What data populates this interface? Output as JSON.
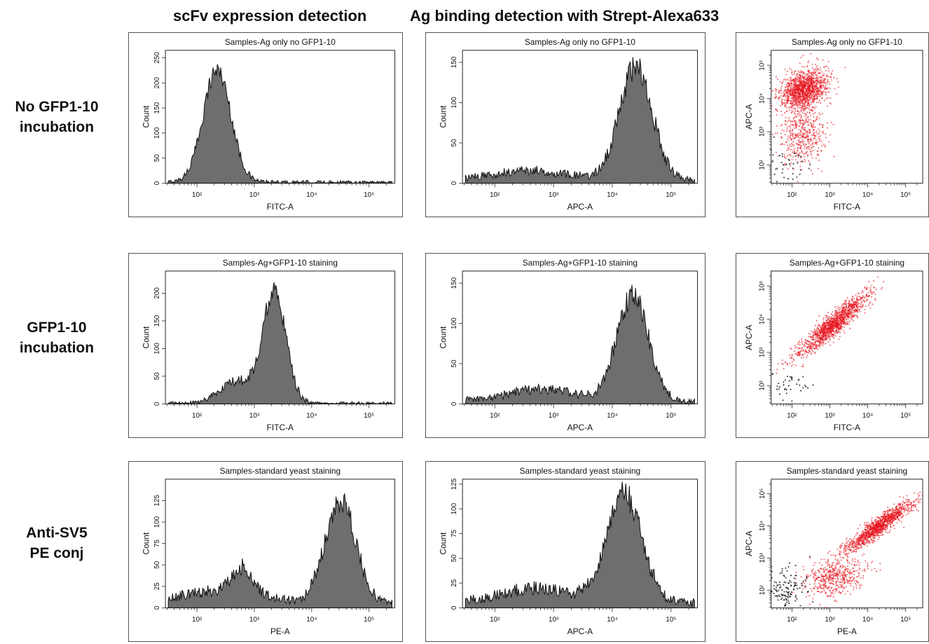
{
  "column_titles": [
    "scFv expression detection",
    "Ag binding detection with Strept-Alexa633"
  ],
  "row_labels": [
    [
      "No GFP1-10",
      "incubation"
    ],
    [
      "GFP1-10",
      "incubation"
    ],
    [
      "Anti-SV5",
      "PE conj"
    ]
  ],
  "colors": {
    "histogram_fill": "#6e6e6e",
    "histogram_line": "#111111",
    "dots_main": "#e8141e",
    "dots_dark": "#222222"
  },
  "chart_data": [
    {
      "type": "histogram",
      "row": 0,
      "col": 0,
      "title": "Samples-Ag only no GFP1-10",
      "xlabel": "FITC-A",
      "ylabel": "Count",
      "xscale": "log",
      "x_ticks": [
        "10²",
        "10³",
        "10⁴",
        "10⁵"
      ],
      "yticks": [
        0,
        50,
        100,
        150,
        200,
        250
      ],
      "ylim": [
        0,
        265
      ],
      "peaks": [
        {
          "log_center": 2.35,
          "log_width": 0.24,
          "height": 225
        }
      ],
      "baseline": 2,
      "peak_value": 235
    },
    {
      "type": "histogram",
      "row": 0,
      "col": 1,
      "title": "Samples-Ag only no GFP1-10",
      "xlabel": "APC-A",
      "ylabel": "Count",
      "xscale": "log",
      "x_ticks": [
        "10²",
        "10³",
        "10⁴",
        "10⁵"
      ],
      "yticks": [
        0,
        50,
        100,
        150
      ],
      "ylim": [
        0,
        165
      ],
      "peaks": [
        {
          "log_center": 4.4,
          "log_width": 0.28,
          "height": 140
        },
        {
          "log_center": 2.6,
          "log_width": 0.6,
          "height": 12
        }
      ],
      "baseline": 4,
      "peak_value": 160
    },
    {
      "type": "scatter",
      "row": 0,
      "col": 2,
      "title": "Samples-Ag only no GFP1-10",
      "xlabel": "FITC-A",
      "ylabel": "APC-A",
      "xscale": "log",
      "yscale": "log",
      "x_ticks": [
        "10²",
        "10³",
        "10⁴",
        "10⁵"
      ],
      "y_ticks": [
        "10²",
        "10³",
        "10⁴",
        "10⁵"
      ],
      "clusters": [
        {
          "x_log": 2.3,
          "y_log": 4.25,
          "sx": 0.3,
          "sy": 0.3,
          "n": 1300,
          "rho": 0.3
        },
        {
          "x_log": 2.3,
          "y_log": 2.9,
          "sx": 0.3,
          "sy": 0.45,
          "n": 450,
          "rho": 0.15
        }
      ],
      "dark_points": 40
    },
    {
      "type": "histogram",
      "row": 1,
      "col": 0,
      "title": "Samples-Ag+GFP1-10 staining",
      "xlabel": "FITC-A",
      "ylabel": "Count",
      "xscale": "log",
      "x_ticks": [
        "10²",
        "10³",
        "10⁴",
        "10⁵"
      ],
      "yticks": [
        0,
        50,
        100,
        150,
        200
      ],
      "ylim": [
        0,
        240
      ],
      "peaks": [
        {
          "log_center": 3.35,
          "log_width": 0.2,
          "height": 200
        },
        {
          "log_center": 2.7,
          "log_width": 0.3,
          "height": 40
        }
      ],
      "baseline": 1,
      "peak_value": 230
    },
    {
      "type": "histogram",
      "row": 1,
      "col": 1,
      "title": "Samples-Ag+GFP1-10 staining",
      "xlabel": "APC-A",
      "ylabel": "Count",
      "xscale": "log",
      "x_ticks": [
        "10²",
        "10³",
        "10⁴",
        "10⁵"
      ],
      "yticks": [
        0,
        50,
        100,
        150
      ],
      "ylim": [
        0,
        165
      ],
      "peaks": [
        {
          "log_center": 4.35,
          "log_width": 0.27,
          "height": 130
        },
        {
          "log_center": 2.8,
          "log_width": 0.6,
          "height": 15
        }
      ],
      "baseline": 3,
      "peak_value": 150
    },
    {
      "type": "scatter",
      "row": 1,
      "col": 2,
      "title": "Samples-Ag+GFP1-10 staining",
      "xlabel": "FITC-A",
      "ylabel": "APC-A",
      "xscale": "log",
      "yscale": "log",
      "x_ticks": [
        "10²",
        "10³",
        "10⁴",
        "10⁵"
      ],
      "y_ticks": [
        "10²",
        "10³",
        "10⁴",
        "10⁵"
      ],
      "clusters": [
        {
          "x_log": 3.1,
          "y_log": 3.85,
          "sx": 0.45,
          "sy": 0.45,
          "n": 1300,
          "rho": 0.92
        }
      ],
      "dark_points": 40
    },
    {
      "type": "histogram",
      "row": 2,
      "col": 0,
      "title": "Samples-standard yeast staining",
      "xlabel": "PE-A",
      "ylabel": "Count",
      "xscale": "log",
      "x_ticks": [
        "10²",
        "10³",
        "10⁴",
        "10⁵"
      ],
      "yticks": [
        0,
        25,
        50,
        75,
        100,
        125
      ],
      "ylim": [
        0,
        150
      ],
      "peaks": [
        {
          "log_center": 4.5,
          "log_width": 0.27,
          "height": 120
        },
        {
          "log_center": 2.8,
          "log_width": 0.18,
          "height": 30
        },
        {
          "log_center": 2.4,
          "log_width": 0.7,
          "height": 15
        }
      ],
      "baseline": 5,
      "peak_value": 140
    },
    {
      "type": "histogram",
      "row": 2,
      "col": 1,
      "title": "Samples-standard yeast staining",
      "xlabel": "APC-A",
      "ylabel": "Count",
      "xscale": "log",
      "x_ticks": [
        "10²",
        "10³",
        "10⁴",
        "10⁵"
      ],
      "yticks": [
        0,
        25,
        50,
        75,
        100,
        125
      ],
      "ylim": [
        0,
        130
      ],
      "peaks": [
        {
          "log_center": 4.2,
          "log_width": 0.3,
          "height": 110
        },
        {
          "log_center": 2.7,
          "log_width": 0.6,
          "height": 15
        }
      ],
      "baseline": 5,
      "peak_value": 125
    },
    {
      "type": "scatter",
      "row": 2,
      "col": 2,
      "title": "Samples-standard yeast staining",
      "xlabel": "PE-A",
      "ylabel": "APC-A",
      "xscale": "log",
      "yscale": "log",
      "x_ticks": [
        "10²",
        "10³",
        "10⁴",
        "10⁵"
      ],
      "y_ticks": [
        "10²",
        "10³",
        "10⁴",
        "10⁵"
      ],
      "clusters": [
        {
          "x_log": 4.3,
          "y_log": 4.0,
          "sx": 0.45,
          "sy": 0.4,
          "n": 1200,
          "rho": 0.93
        },
        {
          "x_log": 3.1,
          "y_log": 2.4,
          "sx": 0.4,
          "sy": 0.3,
          "n": 500,
          "rho": 0.3
        }
      ],
      "dark_points": 140
    }
  ]
}
